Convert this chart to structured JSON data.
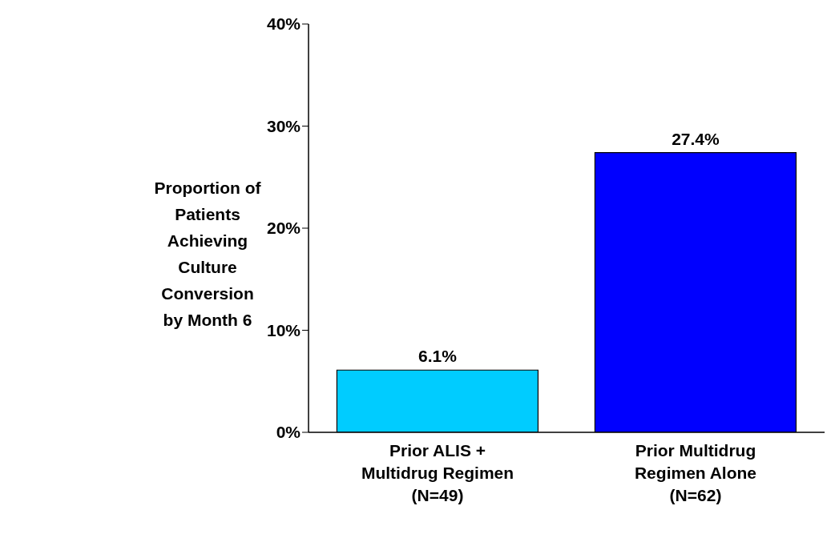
{
  "chart_data": {
    "type": "bar",
    "ylabel": "Proportion of Patients Achieving Culture Conversion by Month 6",
    "categories": [
      "Prior ALIS + Multidrug Regimen (N=49)",
      "Prior Multidrug Regimen Alone (N=62)"
    ],
    "values": [
      6.1,
      27.4
    ],
    "colors": [
      "#00ccff",
      "#0000ff"
    ],
    "value_labels": [
      "6.1%",
      "27.4%"
    ],
    "ylim": [
      0,
      40
    ],
    "yticks": [
      {
        "value": 0,
        "label": "0%"
      },
      {
        "value": 10,
        "label": "10%"
      },
      {
        "value": 20,
        "label": "20%"
      },
      {
        "value": 30,
        "label": "30%"
      },
      {
        "value": 40,
        "label": "40%"
      }
    ],
    "grid": false,
    "legend": false
  }
}
